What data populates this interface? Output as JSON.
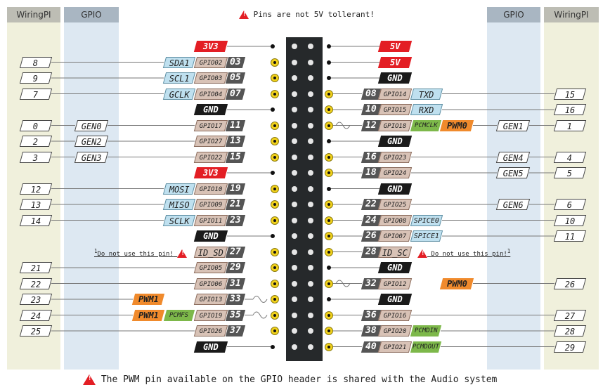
{
  "columns": {
    "wiringpi": "WiringPI",
    "gpio": "GPIO"
  },
  "top_warning": "Pins are not 5V tollerant!",
  "bottom_note": "The PWM pin available on the GPIO header is shared with the Audio system",
  "do_not_use": "Do not use this pin!",
  "note_marker": "1",
  "colors": {
    "red": "#e31e24",
    "black": "#1a1a1a",
    "gpio_yellow": "#f2d21b",
    "orange": "#f08a2c",
    "green": "#7db84a",
    "blue": "#bfe0ef",
    "pinbox": "#d8c2b6"
  },
  "rows": [
    {
      "left": {
        "type": "power",
        "label": "3V3",
        "color": "red"
      },
      "right": {
        "type": "power",
        "label": "5V",
        "color": "red"
      }
    },
    {
      "left": {
        "type": "gpio",
        "pin": "03",
        "gpio": "GPIO02",
        "alt": "SDA1",
        "wiringpi": "8"
      },
      "right": {
        "type": "power",
        "label": "5V",
        "color": "red"
      }
    },
    {
      "left": {
        "type": "gpio",
        "pin": "05",
        "gpio": "GPIO03",
        "alt": "SCL1",
        "wiringpi": "9"
      },
      "right": {
        "type": "power",
        "label": "GND",
        "color": "black"
      }
    },
    {
      "left": {
        "type": "gpio",
        "pin": "07",
        "gpio": "GPIO04",
        "alt": "GCLK",
        "wiringpi": "7"
      },
      "right": {
        "type": "gpio",
        "pin": "08",
        "gpio": "GPIO14",
        "alt": "TXD",
        "wiringpi": "15"
      }
    },
    {
      "left": {
        "type": "power",
        "label": "GND",
        "color": "black"
      },
      "right": {
        "type": "gpio",
        "pin": "10",
        "gpio": "GPIO15",
        "alt": "RXD",
        "wiringpi": "16"
      }
    },
    {
      "left": {
        "type": "gpio",
        "pin": "11",
        "gpio": "GPIO17",
        "gen": "GEN0",
        "wiringpi": "0"
      },
      "right": {
        "type": "gpio",
        "pin": "12",
        "gpio": "GPIO18",
        "pcm": "PCMCLK",
        "pwm": "PWM0",
        "gen": "GEN1",
        "wiringpi": "1"
      }
    },
    {
      "left": {
        "type": "gpio",
        "pin": "13",
        "gpio": "GPIO27",
        "gen": "GEN2",
        "wiringpi": "2"
      },
      "right": {
        "type": "power",
        "label": "GND",
        "color": "black"
      }
    },
    {
      "left": {
        "type": "gpio",
        "pin": "15",
        "gpio": "GPIO22",
        "gen": "GEN3",
        "wiringpi": "3"
      },
      "right": {
        "type": "gpio",
        "pin": "16",
        "gpio": "GPIO23",
        "gen": "GEN4",
        "wiringpi": "4"
      }
    },
    {
      "left": {
        "type": "power",
        "label": "3V3",
        "color": "red"
      },
      "right": {
        "type": "gpio",
        "pin": "18",
        "gpio": "GPIO24",
        "gen": "GEN5",
        "wiringpi": "5"
      }
    },
    {
      "left": {
        "type": "gpio",
        "pin": "19",
        "gpio": "GPIO10",
        "alt": "MOSI",
        "wiringpi": "12"
      },
      "right": {
        "type": "power",
        "label": "GND",
        "color": "black"
      }
    },
    {
      "left": {
        "type": "gpio",
        "pin": "21",
        "gpio": "GPIO09",
        "alt": "MISO",
        "wiringpi": "13"
      },
      "right": {
        "type": "gpio",
        "pin": "22",
        "gpio": "GPIO25",
        "gen": "GEN6",
        "wiringpi": "6"
      }
    },
    {
      "left": {
        "type": "gpio",
        "pin": "23",
        "gpio": "GPIO11",
        "alt": "SCLK",
        "wiringpi": "14"
      },
      "right": {
        "type": "gpio",
        "pin": "24",
        "gpio": "GPIO08",
        "alt": "SPICE0",
        "wiringpi": "10"
      }
    },
    {
      "left": {
        "type": "power",
        "label": "GND",
        "color": "black"
      },
      "right": {
        "type": "gpio",
        "pin": "26",
        "gpio": "GPIO07",
        "alt": "SPICE1",
        "wiringpi": "11"
      }
    },
    {
      "left": {
        "type": "gpio",
        "pin": "27",
        "gpio": "ID_SD",
        "idpin": true
      },
      "right": {
        "type": "gpio",
        "pin": "28",
        "gpio": "ID_SC",
        "idpin": true
      }
    },
    {
      "left": {
        "type": "gpio",
        "pin": "29",
        "gpio": "GPIO05",
        "wiringpi": "21"
      },
      "right": {
        "type": "power",
        "label": "GND",
        "color": "black"
      }
    },
    {
      "left": {
        "type": "gpio",
        "pin": "31",
        "gpio": "GPIO06",
        "wiringpi": "22"
      },
      "right": {
        "type": "gpio",
        "pin": "32",
        "gpio": "GPIO12",
        "pwm": "PWM0",
        "wiringpi": "26"
      }
    },
    {
      "left": {
        "type": "gpio",
        "pin": "33",
        "gpio": "GPIO13",
        "pwm": "PWM1",
        "wiringpi": "23"
      },
      "right": {
        "type": "power",
        "label": "GND",
        "color": "black"
      }
    },
    {
      "left": {
        "type": "gpio",
        "pin": "35",
        "gpio": "GPIO19",
        "pwm": "PWM1",
        "pcm": "PCMFS",
        "wiringpi": "24"
      },
      "right": {
        "type": "gpio",
        "pin": "36",
        "gpio": "GPIO16",
        "wiringpi": "27"
      }
    },
    {
      "left": {
        "type": "gpio",
        "pin": "37",
        "gpio": "GPIO26",
        "wiringpi": "25"
      },
      "right": {
        "type": "gpio",
        "pin": "38",
        "gpio": "GPIO20",
        "pcm": "PCMDIN",
        "wiringpi": "28"
      }
    },
    {
      "left": {
        "type": "power",
        "label": "GND",
        "color": "black"
      },
      "right": {
        "type": "gpio",
        "pin": "40",
        "gpio": "GPIO21",
        "pcm": "PCMDOUT",
        "wiringpi": "29"
      }
    }
  ]
}
